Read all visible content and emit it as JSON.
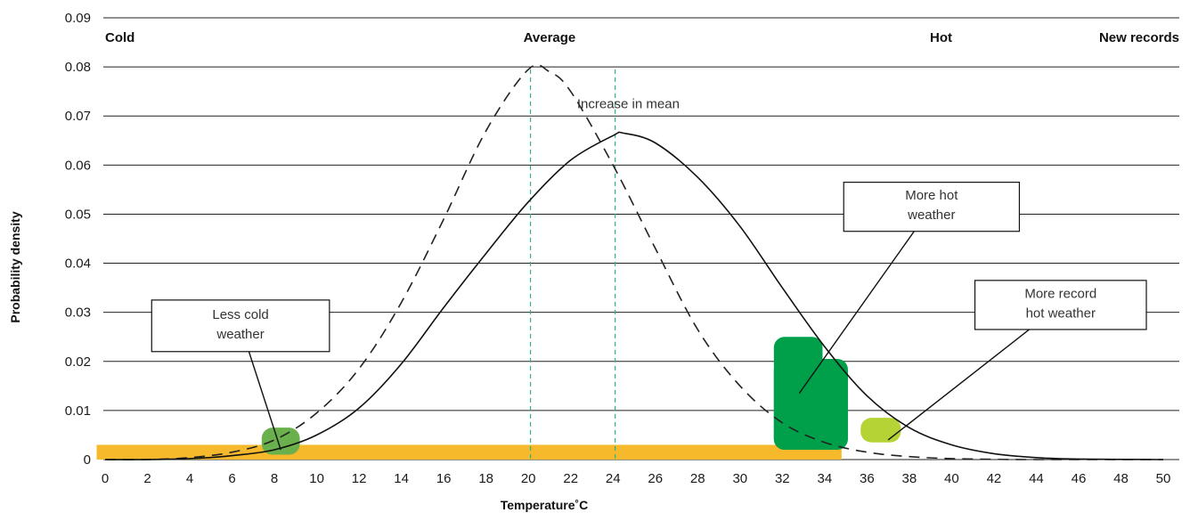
{
  "chart_data": {
    "type": "line",
    "title": "",
    "xlabel": "Temperature˚C",
    "ylabel": "Probability density",
    "xlim": [
      0,
      50
    ],
    "ylim": [
      0,
      0.09
    ],
    "x_ticks": [
      "0",
      "2",
      "4",
      "6",
      "8",
      "10",
      "12",
      "14",
      "16",
      "18",
      "20",
      "22",
      "24",
      "26",
      "28",
      "30",
      "32",
      "34",
      "36",
      "38",
      "40",
      "42",
      "44",
      "46",
      "48",
      "50"
    ],
    "y_ticks": [
      "0",
      "0.01",
      "0.02",
      "0.03",
      "0.04",
      "0.05",
      "0.06",
      "0.07",
      "0.08",
      "0.09"
    ],
    "grid": "horizontal",
    "series": [
      {
        "style": "dashed",
        "color": "#222222",
        "points": [
          [
            0,
            0
          ],
          [
            2,
            0
          ],
          [
            4,
            0.0004
          ],
          [
            6,
            0.0015
          ],
          [
            8,
            0.004
          ],
          [
            10,
            0.0095
          ],
          [
            12,
            0.0185
          ],
          [
            14,
            0.032
          ],
          [
            16,
            0.049
          ],
          [
            18,
            0.067
          ],
          [
            20,
            0.0795
          ],
          [
            21,
            0.079
          ],
          [
            22,
            0.075
          ],
          [
            24,
            0.06
          ],
          [
            26,
            0.043
          ],
          [
            28,
            0.0265
          ],
          [
            30,
            0.015
          ],
          [
            32,
            0.0075
          ],
          [
            34,
            0.0035
          ],
          [
            36,
            0.0015
          ],
          [
            38,
            0.0006
          ],
          [
            40,
            0.0002
          ],
          [
            42,
            5e-05
          ],
          [
            44,
            0
          ],
          [
            50,
            0
          ]
        ]
      },
      {
        "style": "solid",
        "color": "#111111",
        "points": [
          [
            0,
            0
          ],
          [
            2,
            0
          ],
          [
            4,
            0.0002
          ],
          [
            6,
            0.0008
          ],
          [
            8,
            0.002
          ],
          [
            10,
            0.005
          ],
          [
            12,
            0.0105
          ],
          [
            14,
            0.0195
          ],
          [
            16,
            0.031
          ],
          [
            18,
            0.042
          ],
          [
            20,
            0.0525
          ],
          [
            22,
            0.061
          ],
          [
            24,
            0.066
          ],
          [
            24.5,
            0.0665
          ],
          [
            26,
            0.0645
          ],
          [
            28,
            0.0575
          ],
          [
            30,
            0.0475
          ],
          [
            32,
            0.035
          ],
          [
            34,
            0.023
          ],
          [
            36,
            0.013
          ],
          [
            38,
            0.0065
          ],
          [
            40,
            0.003
          ],
          [
            42,
            0.0012
          ],
          [
            44,
            0.0004
          ],
          [
            46,
            0.0001
          ],
          [
            50,
            0
          ]
        ]
      }
    ],
    "reference_lines": [
      {
        "x": 20.1,
        "color": "#2bb38a",
        "style": "dashed"
      },
      {
        "x": 24.1,
        "color": "#2bb38a",
        "style": "dashed"
      }
    ],
    "regions": [
      {
        "label": "Cold",
        "x": 0
      },
      {
        "label": "Average",
        "x": 21
      },
      {
        "label": "Hot",
        "x": 39.5
      },
      {
        "label": "New records",
        "x": 50
      }
    ],
    "annotations": [
      {
        "text": "Increase in mean",
        "x": 22.3,
        "y": 0.0725
      },
      {
        "text": [
          "Less cold",
          "weather"
        ],
        "x0": 2.2,
        "x1": 10.6,
        "y0": 0.0325,
        "y1": 0.022,
        "arrow_to": [
          8.3,
          0.002
        ]
      },
      {
        "text": [
          "More hot",
          "weather"
        ],
        "x0": 34.9,
        "x1": 43.2,
        "y0": 0.0565,
        "y1": 0.0465,
        "arrow_to": [
          32.8,
          0.0135
        ]
      },
      {
        "text": [
          "More record",
          "hot weather"
        ],
        "x0": 41.1,
        "x1": 49.2,
        "y0": 0.0365,
        "y1": 0.0265,
        "arrow_to": [
          37.0,
          0.004
        ]
      }
    ],
    "highlights": [
      {
        "color": "#f5b92b",
        "x0": -0.4,
        "x1": 34.8,
        "y0": 0,
        "y1": 0.003
      },
      {
        "color": "#6ab04c",
        "x0": 7.4,
        "x1": 9.2,
        "y0": 0.001,
        "y1": 0.0065
      },
      {
        "color": "#00a04b",
        "x0": 31.6,
        "x1": 33.9,
        "y0": 0.002,
        "y1": 0.025
      },
      {
        "color": "#00a04b",
        "x0": 31.6,
        "x1": 35.1,
        "y0": 0.002,
        "y1": 0.0205
      },
      {
        "color": "#b5d334",
        "x0": 35.7,
        "x1": 37.6,
        "y0": 0.0035,
        "y1": 0.0085
      }
    ]
  }
}
